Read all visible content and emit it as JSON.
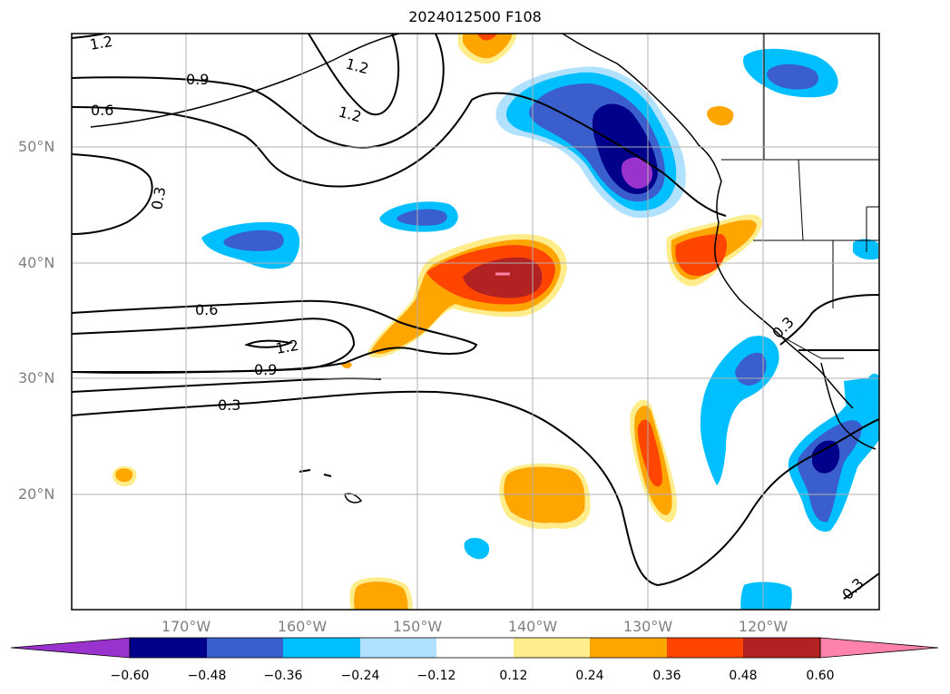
{
  "title": "2024012500 F108",
  "latitude_labels": [
    "50°N",
    "40°N",
    "30°N",
    "20°N"
  ],
  "longitude_labels": [
    "170°W",
    "160°W",
    "150°W",
    "140°W",
    "130°W",
    "120°W"
  ],
  "contour_labels": [
    "1.2",
    "0.9",
    "0.6",
    "1.2",
    "1.2",
    "0.3",
    "0.6",
    "1.2",
    "0.9",
    "0.3",
    "0.3",
    "0.3"
  ],
  "colorbar": {
    "tick_labels": [
      "−0.60",
      "−0.48",
      "−0.36",
      "−0.24",
      "−0.12",
      "0.12",
      "0.24",
      "0.36",
      "0.48",
      "0.60"
    ],
    "colors": [
      "#9a32cd",
      "#00008b",
      "#3a5fcd",
      "#00bfff",
      "#b0e2ff",
      "#ffffff",
      "#ffec8b",
      "#ffa500",
      "#ff4500",
      "#b22222",
      "#ff82ab"
    ]
  }
}
